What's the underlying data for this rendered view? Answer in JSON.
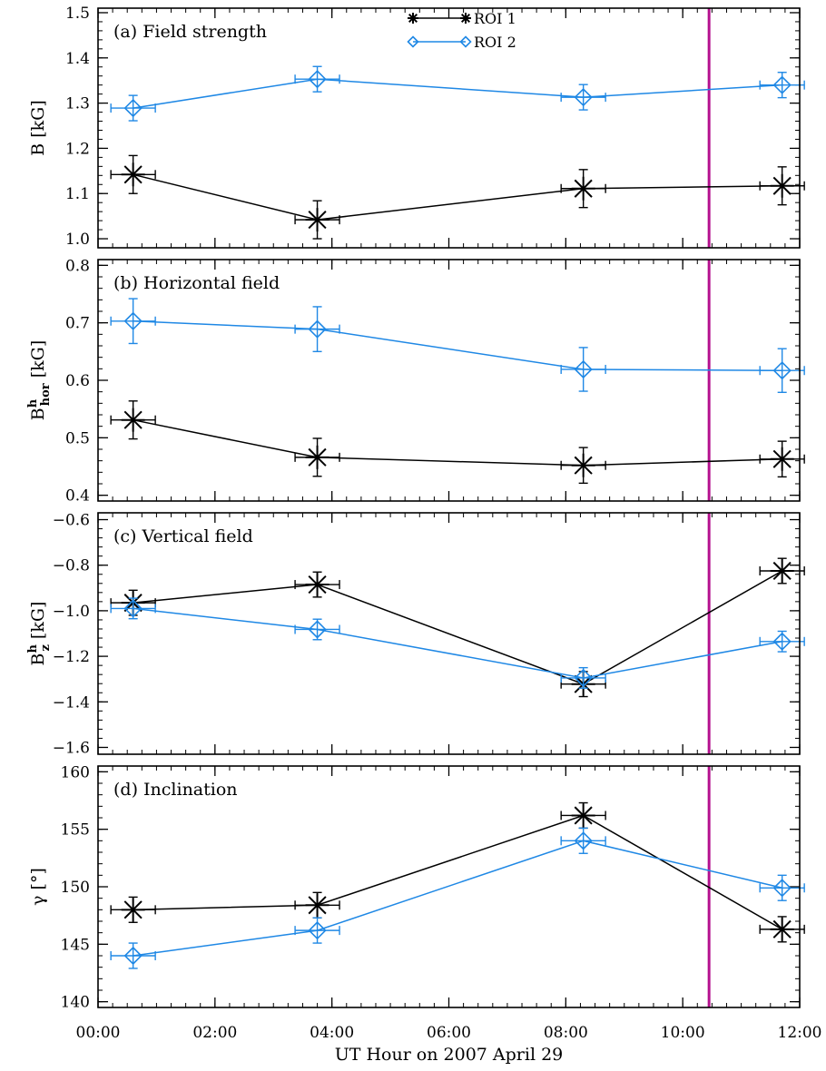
{
  "chart_data": {
    "type": "line",
    "xlabel": "UT Hour on 2007 April 29",
    "xlim": [
      0,
      12
    ],
    "xticks": [
      0,
      2,
      4,
      6,
      8,
      10,
      12
    ],
    "xtick_labels": [
      "00:00",
      "02:00",
      "04:00",
      "06:00",
      "08:00",
      "10:00",
      "12:00"
    ],
    "vertical_marker": {
      "x": 10.45,
      "color": "#b5118e"
    },
    "x_error": 0.38,
    "legend": {
      "position": "top-center",
      "entries": [
        {
          "label": "ROI 1",
          "color": "#000000",
          "marker": "asterisk"
        },
        {
          "label": "ROI 2",
          "color": "#1f88e5",
          "marker": "diamond"
        }
      ]
    },
    "panels": [
      {
        "title": "(a) Field strength",
        "ylabel": "B [kG]",
        "ylim": [
          0.98,
          1.51
        ],
        "yticks": [
          1.0,
          1.1,
          1.2,
          1.3,
          1.4,
          1.5
        ],
        "ytick_labels": [
          "1.0",
          "1.1",
          "1.2",
          "1.3",
          "1.4",
          "1.5"
        ],
        "series": [
          {
            "name": "ROI 1",
            "x": [
              0.6,
              3.75,
              8.3,
              11.7
            ],
            "y": [
              1.142,
              1.042,
              1.111,
              1.117
            ],
            "yerr": [
              0.042,
              0.042,
              0.042,
              0.042
            ]
          },
          {
            "name": "ROI 2",
            "x": [
              0.6,
              3.75,
              8.3,
              11.7
            ],
            "y": [
              1.289,
              1.353,
              1.313,
              1.34
            ],
            "yerr": [
              0.028,
              0.028,
              0.028,
              0.028
            ]
          }
        ]
      },
      {
        "title": "(b) Horizontal field",
        "ylabel": "B^h_hor [kG]",
        "ylim": [
          0.39,
          0.81
        ],
        "yticks": [
          0.4,
          0.5,
          0.6,
          0.7,
          0.8
        ],
        "ytick_labels": [
          "0.4",
          "0.5",
          "0.6",
          "0.7",
          "0.8"
        ],
        "series": [
          {
            "name": "ROI 1",
            "x": [
              0.6,
              3.75,
              8.3,
              11.7
            ],
            "y": [
              0.531,
              0.466,
              0.452,
              0.463
            ],
            "yerr": [
              0.033,
              0.033,
              0.031,
              0.031
            ]
          },
          {
            "name": "ROI 2",
            "x": [
              0.6,
              3.75,
              8.3,
              11.7
            ],
            "y": [
              0.703,
              0.689,
              0.619,
              0.617
            ],
            "yerr": [
              0.039,
              0.039,
              0.038,
              0.038
            ]
          }
        ]
      },
      {
        "title": "(c) Vertical field",
        "ylabel": "B^h_z [kG]",
        "ylim": [
          -1.63,
          -0.57
        ],
        "yticks": [
          -1.6,
          -1.4,
          -1.2,
          -1.0,
          -0.8,
          -0.6
        ],
        "ytick_labels": [
          "−1.6",
          "−1.4",
          "−1.2",
          "−1.0",
          "−0.8",
          "−0.6"
        ],
        "series": [
          {
            "name": "ROI 1",
            "x": [
              0.6,
              3.75,
              8.3,
              11.7
            ],
            "y": [
              -0.965,
              -0.885,
              -1.322,
              -0.825
            ],
            "yerr": [
              0.055,
              0.055,
              0.055,
              0.055
            ]
          },
          {
            "name": "ROI 2",
            "x": [
              0.6,
              3.75,
              8.3,
              11.7
            ],
            "y": [
              -0.99,
              -1.082,
              -1.295,
              -1.135
            ],
            "yerr": [
              0.045,
              0.045,
              0.045,
              0.045
            ]
          }
        ]
      },
      {
        "title": "(d) Inclination",
        "ylabel": "γ [°]",
        "ylim": [
          139.5,
          160.5
        ],
        "yticks": [
          140,
          145,
          150,
          155,
          160
        ],
        "ytick_labels": [
          "140",
          "145",
          "150",
          "155",
          "160"
        ],
        "series": [
          {
            "name": "ROI 1",
            "x": [
              0.6,
              3.75,
              8.3,
              11.7
            ],
            "y": [
              148.0,
              148.4,
              156.2,
              146.3
            ],
            "yerr": [
              1.1,
              1.1,
              1.1,
              1.1
            ]
          },
          {
            "name": "ROI 2",
            "x": [
              0.6,
              3.75,
              8.3,
              11.7
            ],
            "y": [
              144.0,
              146.2,
              154.0,
              149.9
            ],
            "yerr": [
              1.1,
              1.1,
              1.1,
              1.1
            ]
          }
        ]
      }
    ]
  }
}
